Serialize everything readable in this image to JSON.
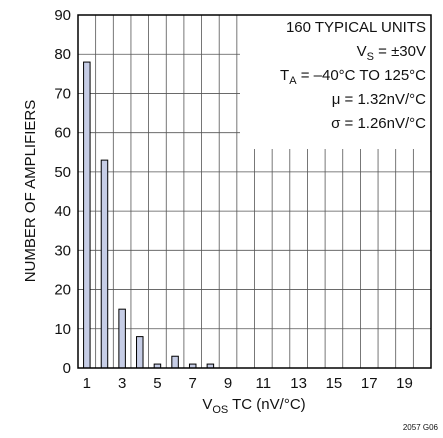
{
  "chart_data": {
    "type": "bar",
    "x": [
      1,
      2,
      3,
      4,
      5,
      6,
      7,
      8
    ],
    "values": [
      78,
      53,
      15,
      8,
      1,
      3,
      1,
      1
    ],
    "xlim": [
      0.5,
      20.5
    ],
    "ylim": [
      0,
      90
    ],
    "xticks": [
      "1",
      "3",
      "5",
      "7",
      "9",
      "11",
      "13",
      "15",
      "17",
      "19"
    ],
    "yticks": [
      "0",
      "10",
      "20",
      "30",
      "40",
      "50",
      "60",
      "70",
      "80",
      "90"
    ],
    "ylabel": "NUMBER OF AMPLIFIERS",
    "xlabel": {
      "main": "V",
      "sub": "OS",
      "rest": " TC (nV/°C)"
    },
    "grid": true,
    "bar_color": "#c6cde6",
    "annotations": {
      "line1": "160 TYPICAL UNITS",
      "line2": {
        "main": "V",
        "sub": "S",
        "rest": " = ±30V"
      },
      "line3": {
        "main": "T",
        "sub": "A",
        "rest": " = –40°C TO 125°C"
      },
      "line4": "μ = 1.32nV/°C",
      "line5": "σ = 1.26nV/°C"
    },
    "figure_id": "2057 G06"
  }
}
